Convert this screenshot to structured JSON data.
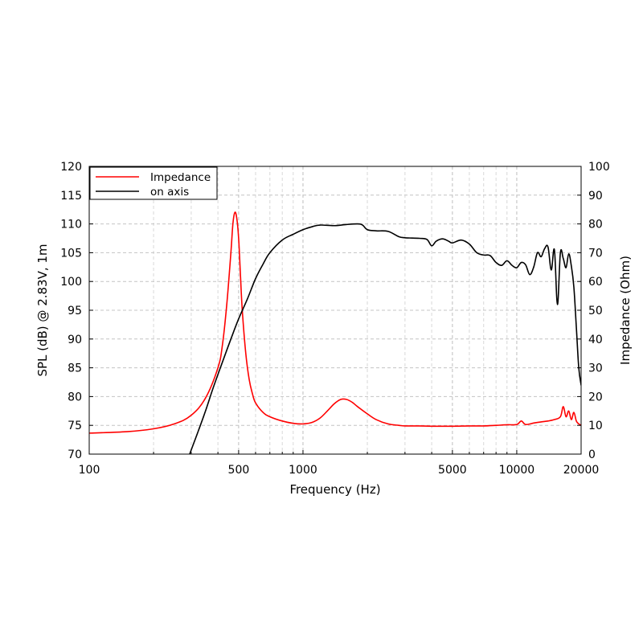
{
  "chart_data": {
    "type": "line",
    "xlabel": "Frequency (Hz)",
    "ylabel": "SPL (dB) @ 2.83V, 1m",
    "y2label": "Impedance (Ohm)",
    "xscale": "log",
    "xlim": [
      100,
      20000
    ],
    "ylim": [
      70,
      120
    ],
    "y2lim": [
      0,
      100
    ],
    "grid": true,
    "legend_position": "top-left",
    "x_ticks": [
      100,
      500,
      1000,
      5000,
      10000,
      20000
    ],
    "x_tick_labels": [
      "100",
      "500",
      "1000",
      "5000",
      "10000",
      "20000"
    ],
    "y_ticks": [
      70,
      75,
      80,
      85,
      90,
      95,
      100,
      105,
      110,
      115,
      120
    ],
    "y_tick_labels": [
      "70",
      "75",
      "80",
      "85",
      "90",
      "95",
      "100",
      "105",
      "110",
      "115",
      "120"
    ],
    "y2_ticks": [
      0,
      10,
      20,
      30,
      40,
      50,
      60,
      70,
      80,
      90,
      100
    ],
    "y2_tick_labels": [
      "0",
      "10",
      "20",
      "30",
      "40",
      "50",
      "60",
      "70",
      "80",
      "90",
      "100"
    ],
    "series": [
      {
        "name": "Impedance",
        "color": "#ff0000",
        "axis": "right",
        "x": [
          100,
          150,
          200,
          250,
          300,
          350,
          400,
          420,
          440,
          460,
          470,
          480,
          490,
          500,
          510,
          520,
          540,
          560,
          580,
          600,
          650,
          700,
          800,
          900,
          1000,
          1100,
          1200,
          1300,
          1400,
          1500,
          1600,
          1700,
          1800,
          2000,
          2200,
          2500,
          2800,
          3000,
          3500,
          4000,
          5000,
          6000,
          7000,
          8000,
          9000,
          10000,
          10500,
          11000,
          12000,
          13000,
          14000,
          15000,
          16000,
          16500,
          17000,
          17500,
          18000,
          18500,
          19000,
          19500,
          20000
        ],
        "y": [
          7.3,
          7.8,
          8.8,
          10.5,
          13.5,
          19.5,
          30,
          38,
          52,
          70,
          80,
          84,
          82,
          75,
          62,
          50,
          35,
          26,
          21,
          17.8,
          14.5,
          13,
          11.5,
          10.7,
          10.5,
          11,
          12.5,
          15,
          17.5,
          19,
          19,
          18,
          16.5,
          14,
          12,
          10.5,
          10,
          9.8,
          9.8,
          9.7,
          9.7,
          9.8,
          9.8,
          10,
          10.2,
          10.3,
          11.5,
          10.3,
          10.8,
          11.2,
          11.5,
          12,
          13,
          16.5,
          13,
          15,
          12,
          14.5,
          11.5,
          10.5,
          10
        ]
      },
      {
        "name": "on axis",
        "color": "#000000",
        "axis": "left",
        "x": [
          295,
          320,
          350,
          380,
          420,
          460,
          500,
          550,
          600,
          650,
          700,
          800,
          900,
          1000,
          1100,
          1200,
          1400,
          1600,
          1800,
          1900,
          2000,
          2200,
          2500,
          2800,
          3000,
          3500,
          3800,
          4000,
          4200,
          4500,
          4800,
          5000,
          5500,
          6000,
          6500,
          7000,
          7500,
          8000,
          8500,
          9000,
          9500,
          10000,
          10500,
          11000,
          11500,
          12000,
          12500,
          13000,
          13500,
          14000,
          14500,
          15000,
          15500,
          16000,
          16500,
          17000,
          17500,
          18000,
          18500,
          19000,
          19500,
          20000
        ],
        "y": [
          70,
          73.5,
          77.5,
          81.5,
          86,
          90,
          93.5,
          97,
          100.5,
          103,
          105,
          107.2,
          108.2,
          109,
          109.5,
          109.8,
          109.7,
          109.9,
          110,
          109.8,
          109,
          108.8,
          108.7,
          107.8,
          107.6,
          107.5,
          107.3,
          106.2,
          107,
          107.4,
          107,
          106.7,
          107.2,
          106.5,
          105,
          104.6,
          104.5,
          103.3,
          102.8,
          103.6,
          102.8,
          102.4,
          103.3,
          102.9,
          101.2,
          102.5,
          105,
          104.3,
          105.7,
          106,
          102,
          105.5,
          96,
          105,
          104,
          102.4,
          104.8,
          102.7,
          99,
          92,
          85,
          82
        ]
      }
    ]
  }
}
